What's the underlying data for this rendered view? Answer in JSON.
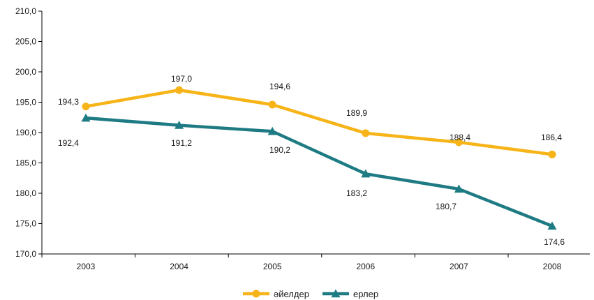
{
  "chart_data": {
    "type": "line",
    "title": "",
    "xlabel": "",
    "ylabel": "",
    "categories": [
      "2003",
      "2004",
      "2005",
      "2006",
      "2007",
      "2008"
    ],
    "ylim": [
      170,
      210
    ],
    "y_ticks": [
      "170,0",
      "175,0",
      "180,0",
      "185,0",
      "190,0",
      "195,0",
      "200,0",
      "205,0",
      "210,0"
    ],
    "y_tick_values": [
      170,
      175,
      180,
      185,
      190,
      195,
      200,
      205,
      210
    ],
    "grid": false,
    "legend_position": "bottom",
    "series": [
      {
        "name": "әйелдер",
        "values": [
          194.3,
          197.0,
          194.6,
          189.9,
          188.4,
          186.4
        ],
        "labels": [
          "194,3",
          "197,0",
          "194,6",
          "189,9",
          "188,4",
          "186,4"
        ],
        "color": "#f7b418",
        "marker": "circle"
      },
      {
        "name": "ерлер",
        "values": [
          192.4,
          191.2,
          190.2,
          183.2,
          180.7,
          174.6
        ],
        "labels": [
          "192,4",
          "191,2",
          "190,2",
          "183,2",
          "180,7",
          "174,6"
        ],
        "color": "#1e7b83",
        "marker": "triangle"
      }
    ]
  }
}
